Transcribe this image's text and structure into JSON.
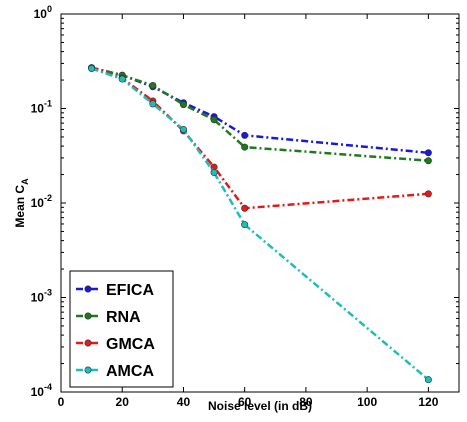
{
  "chart_data": {
    "type": "line",
    "title": "",
    "xlabel": "Noise level (in dB)",
    "ylabel": "Mean C",
    "ylabel_sub": "A",
    "xlim": [
      0,
      130
    ],
    "ylim": [
      0.0001,
      1
    ],
    "yscale": "log",
    "x_ticks": [
      0,
      20,
      40,
      60,
      80,
      100,
      120
    ],
    "y_ticks": [
      {
        "value": 0.0001,
        "base": "10",
        "exp": "-4"
      },
      {
        "value": 0.001,
        "base": "10",
        "exp": "-3"
      },
      {
        "value": 0.01,
        "base": "10",
        "exp": "-2"
      },
      {
        "value": 0.1,
        "base": "10",
        "exp": "-1"
      },
      {
        "value": 1,
        "base": "10",
        "exp": "0"
      }
    ],
    "grid": false,
    "legend_position": "bottom-left",
    "x": [
      10,
      20,
      30,
      40,
      50,
      60,
      120
    ],
    "series": [
      {
        "name": "EFICA",
        "color": "#1a1ad6",
        "values": [
          0.27,
          0.225,
          0.17,
          0.115,
          0.082,
          0.052,
          0.034
        ]
      },
      {
        "name": "RNA",
        "color": "#1e7a1e",
        "values": [
          0.27,
          0.225,
          0.175,
          0.11,
          0.076,
          0.039,
          0.028
        ]
      },
      {
        "name": "GMCA",
        "color": "#e01b1b",
        "values": [
          0.27,
          0.21,
          0.12,
          0.058,
          0.024,
          0.0088,
          0.0125
        ]
      },
      {
        "name": "AMCA",
        "color": "#1fbcbc",
        "values": [
          0.265,
          0.205,
          0.112,
          0.06,
          0.021,
          0.0059,
          0.000135
        ]
      }
    ]
  }
}
